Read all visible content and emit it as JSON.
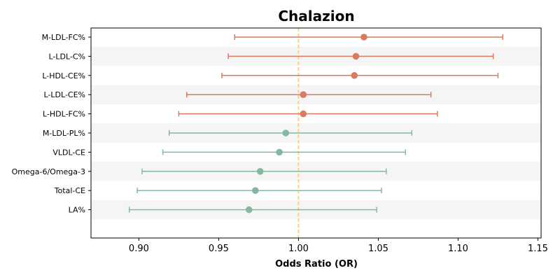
{
  "chart_data": {
    "type": "forest",
    "title": "Chalazion",
    "xlabel": "Odds Ratio (OR)",
    "xlim": [
      0.87,
      1.152
    ],
    "xticks": [
      0.9,
      0.95,
      1.0,
      1.05,
      1.1,
      1.15
    ],
    "xtick_labels": [
      "0.90",
      "0.95",
      "1.00",
      "1.05",
      "1.10",
      "1.15"
    ],
    "reference_line": 1.0,
    "row_shading": "alternating",
    "colors": {
      "positive": "#dc7a5f",
      "negative": "#86b8a0",
      "reference": "#f5c98b",
      "shade": "#f5f5f5"
    },
    "rows": [
      {
        "label": "M-LDL-FC%",
        "or": 1.041,
        "lower": 0.96,
        "upper": 1.128,
        "group": "positive"
      },
      {
        "label": "L-LDL-C%",
        "or": 1.036,
        "lower": 0.956,
        "upper": 1.122,
        "group": "positive"
      },
      {
        "label": "L-HDL-CE%",
        "or": 1.035,
        "lower": 0.952,
        "upper": 1.125,
        "group": "positive"
      },
      {
        "label": "L-LDL-CE%",
        "or": 1.003,
        "lower": 0.93,
        "upper": 1.083,
        "group": "positive"
      },
      {
        "label": "L-HDL-FC%",
        "or": 1.003,
        "lower": 0.925,
        "upper": 1.087,
        "group": "positive"
      },
      {
        "label": "M-LDL-PL%",
        "or": 0.992,
        "lower": 0.919,
        "upper": 1.071,
        "group": "negative"
      },
      {
        "label": "VLDL-CE",
        "or": 0.988,
        "lower": 0.915,
        "upper": 1.067,
        "group": "negative"
      },
      {
        "label": "Omega-6/Omega-3",
        "or": 0.976,
        "lower": 0.902,
        "upper": 1.055,
        "group": "negative"
      },
      {
        "label": "Total-CE",
        "or": 0.973,
        "lower": 0.899,
        "upper": 1.052,
        "group": "negative"
      },
      {
        "label": "LA%",
        "or": 0.969,
        "lower": 0.894,
        "upper": 1.049,
        "group": "negative"
      }
    ]
  }
}
